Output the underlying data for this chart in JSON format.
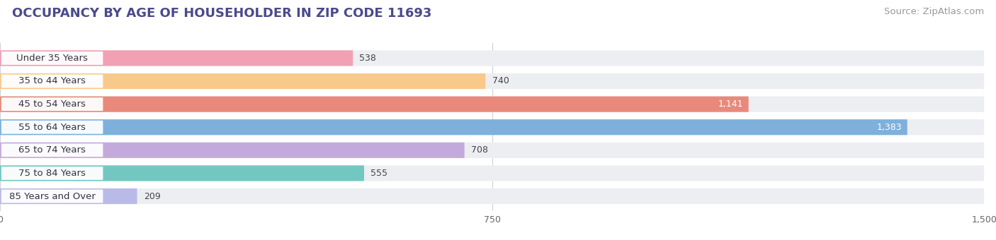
{
  "title": "OCCUPANCY BY AGE OF HOUSEHOLDER IN ZIP CODE 11693",
  "source": "Source: ZipAtlas.com",
  "categories": [
    "Under 35 Years",
    "35 to 44 Years",
    "45 to 54 Years",
    "55 to 64 Years",
    "65 to 74 Years",
    "75 to 84 Years",
    "85 Years and Over"
  ],
  "values": [
    538,
    740,
    1141,
    1383,
    708,
    555,
    209
  ],
  "bar_colors": [
    "#F2A0B4",
    "#F9C98C",
    "#E8897C",
    "#7EB0DC",
    "#C3AADC",
    "#72C8C0",
    "#BABAE8"
  ],
  "bar_bg_color": "#EDEEF2",
  "xlim": [
    0,
    1500
  ],
  "xticks": [
    0,
    750,
    1500
  ],
  "title_color": "#4A4A8C",
  "source_color": "#999999",
  "title_fontsize": 13,
  "source_fontsize": 9.5,
  "label_fontsize": 9.5,
  "value_fontsize": 9,
  "bar_height": 0.68,
  "background_color": "#FFFFFF",
  "value_inside_threshold": 1100
}
